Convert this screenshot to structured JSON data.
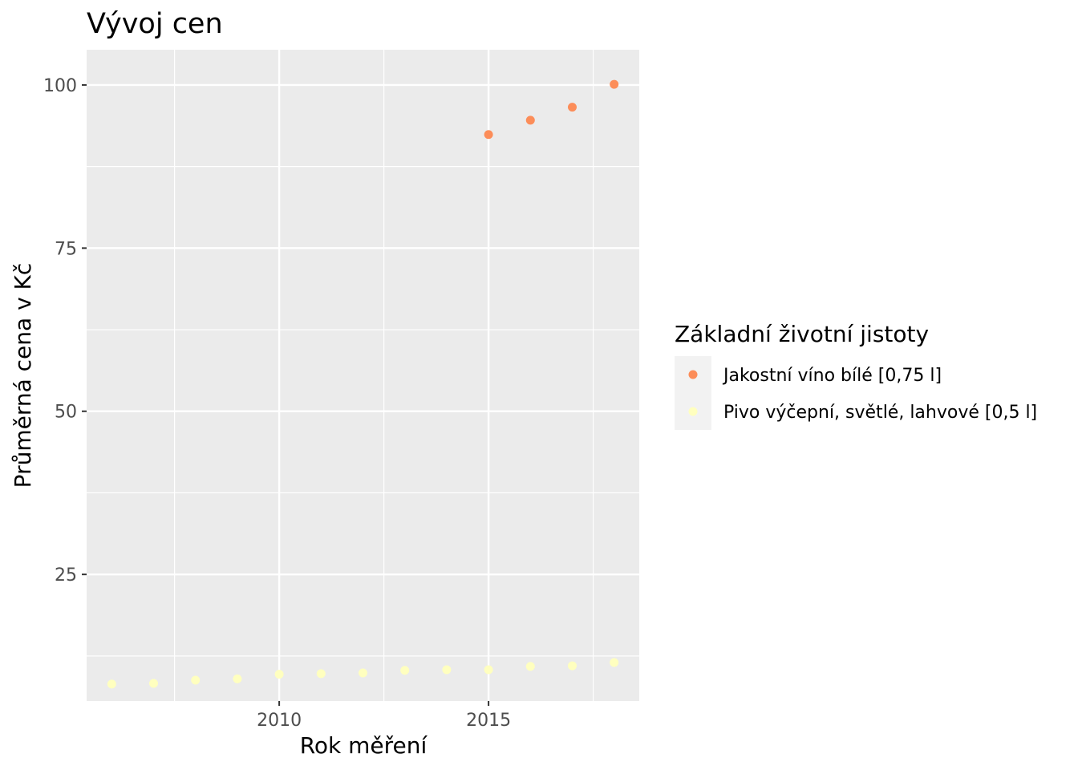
{
  "chart_data": {
    "type": "scatter",
    "title": "Vývoj cen",
    "xlabel": "Rok měření",
    "ylabel": "Průměrná cena v Kč",
    "xlim": [
      2005.4,
      2018.6
    ],
    "ylim": [
      5.6,
      105.4
    ],
    "x_ticks": [
      2010,
      2015
    ],
    "x_tick_labels": [
      "2010",
      "2015"
    ],
    "y_ticks": [
      25,
      50,
      75,
      100
    ],
    "y_tick_labels": [
      "25",
      "50",
      "75",
      "100"
    ],
    "grid": true,
    "legend": {
      "title": "Základní životní jistoty",
      "position": "right"
    },
    "series": [
      {
        "name": "Jakostní víno bílé [0,75 l]",
        "color": "#fc8d59",
        "x": [
          2015,
          2016,
          2017,
          2018
        ],
        "y": [
          92.4,
          94.6,
          96.6,
          100.1
        ]
      },
      {
        "name": "Pivo výčepní, světlé, lahvové [0,5 l]",
        "color": "#ffffbf",
        "x": [
          2006,
          2007,
          2008,
          2009,
          2010,
          2011,
          2012,
          2013,
          2014,
          2015,
          2016,
          2017,
          2018
        ],
        "y": [
          8.2,
          8.3,
          8.8,
          9.0,
          9.7,
          9.8,
          9.9,
          10.3,
          10.4,
          10.4,
          10.9,
          11.0,
          11.5
        ]
      }
    ]
  }
}
